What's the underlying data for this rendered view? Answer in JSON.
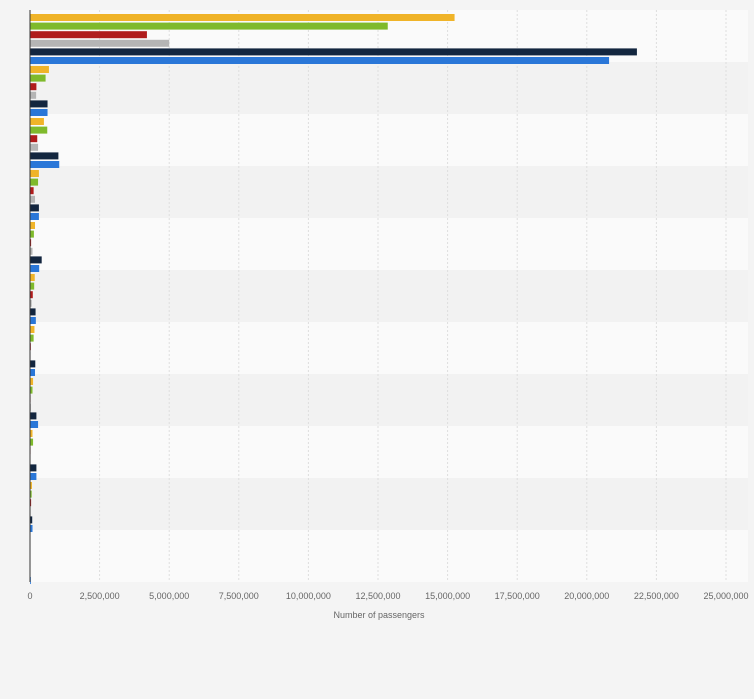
{
  "chart_data": {
    "type": "bar",
    "orientation": "horizontal",
    "xlabel": "Number of passengers",
    "xlim": [
      0,
      25000000
    ],
    "x_ticks": [
      0,
      2500000,
      5000000,
      7500000,
      10000000,
      12500000,
      15000000,
      17500000,
      20000000,
      22500000,
      25000000
    ],
    "x_tick_labels": [
      "0",
      "2,500,000",
      "5,000,000",
      "7,500,000",
      "10,000,000",
      "12,500,000",
      "15,000,000",
      "17,500,000",
      "20,000,000",
      "22,500,000",
      "25,000,000"
    ],
    "category_count": 11,
    "grid": true,
    "legend": "none",
    "series": [
      {
        "color": "#f0b429",
        "values": [
          15250000,
          680000,
          500000,
          320000,
          180000,
          170000,
          160000,
          110000,
          90000,
          70000,
          0
        ]
      },
      {
        "color": "#7fba2c",
        "values": [
          12850000,
          560000,
          620000,
          290000,
          140000,
          150000,
          130000,
          90000,
          110000,
          60000,
          0
        ]
      },
      {
        "color": "#b01c1c",
        "values": [
          4200000,
          230000,
          260000,
          130000,
          40000,
          100000,
          30000,
          20000,
          20000,
          40000,
          0
        ]
      },
      {
        "color": "#b5b5b5",
        "values": [
          5000000,
          220000,
          290000,
          180000,
          90000,
          60000,
          20000,
          30000,
          10000,
          10000,
          0
        ]
      },
      {
        "color": "#13263f",
        "values": [
          21800000,
          630000,
          1020000,
          320000,
          420000,
          200000,
          190000,
          230000,
          230000,
          80000,
          0
        ]
      },
      {
        "color": "#2a77d8",
        "values": [
          20800000,
          630000,
          1050000,
          320000,
          330000,
          210000,
          180000,
          290000,
          230000,
          90000,
          30000
        ]
      }
    ]
  },
  "colors": {
    "background": "#f4f4f4",
    "band_light": "#fafafa",
    "band_dark": "#f2f2f2",
    "gridline": "#dedede",
    "axis": "#333333"
  }
}
